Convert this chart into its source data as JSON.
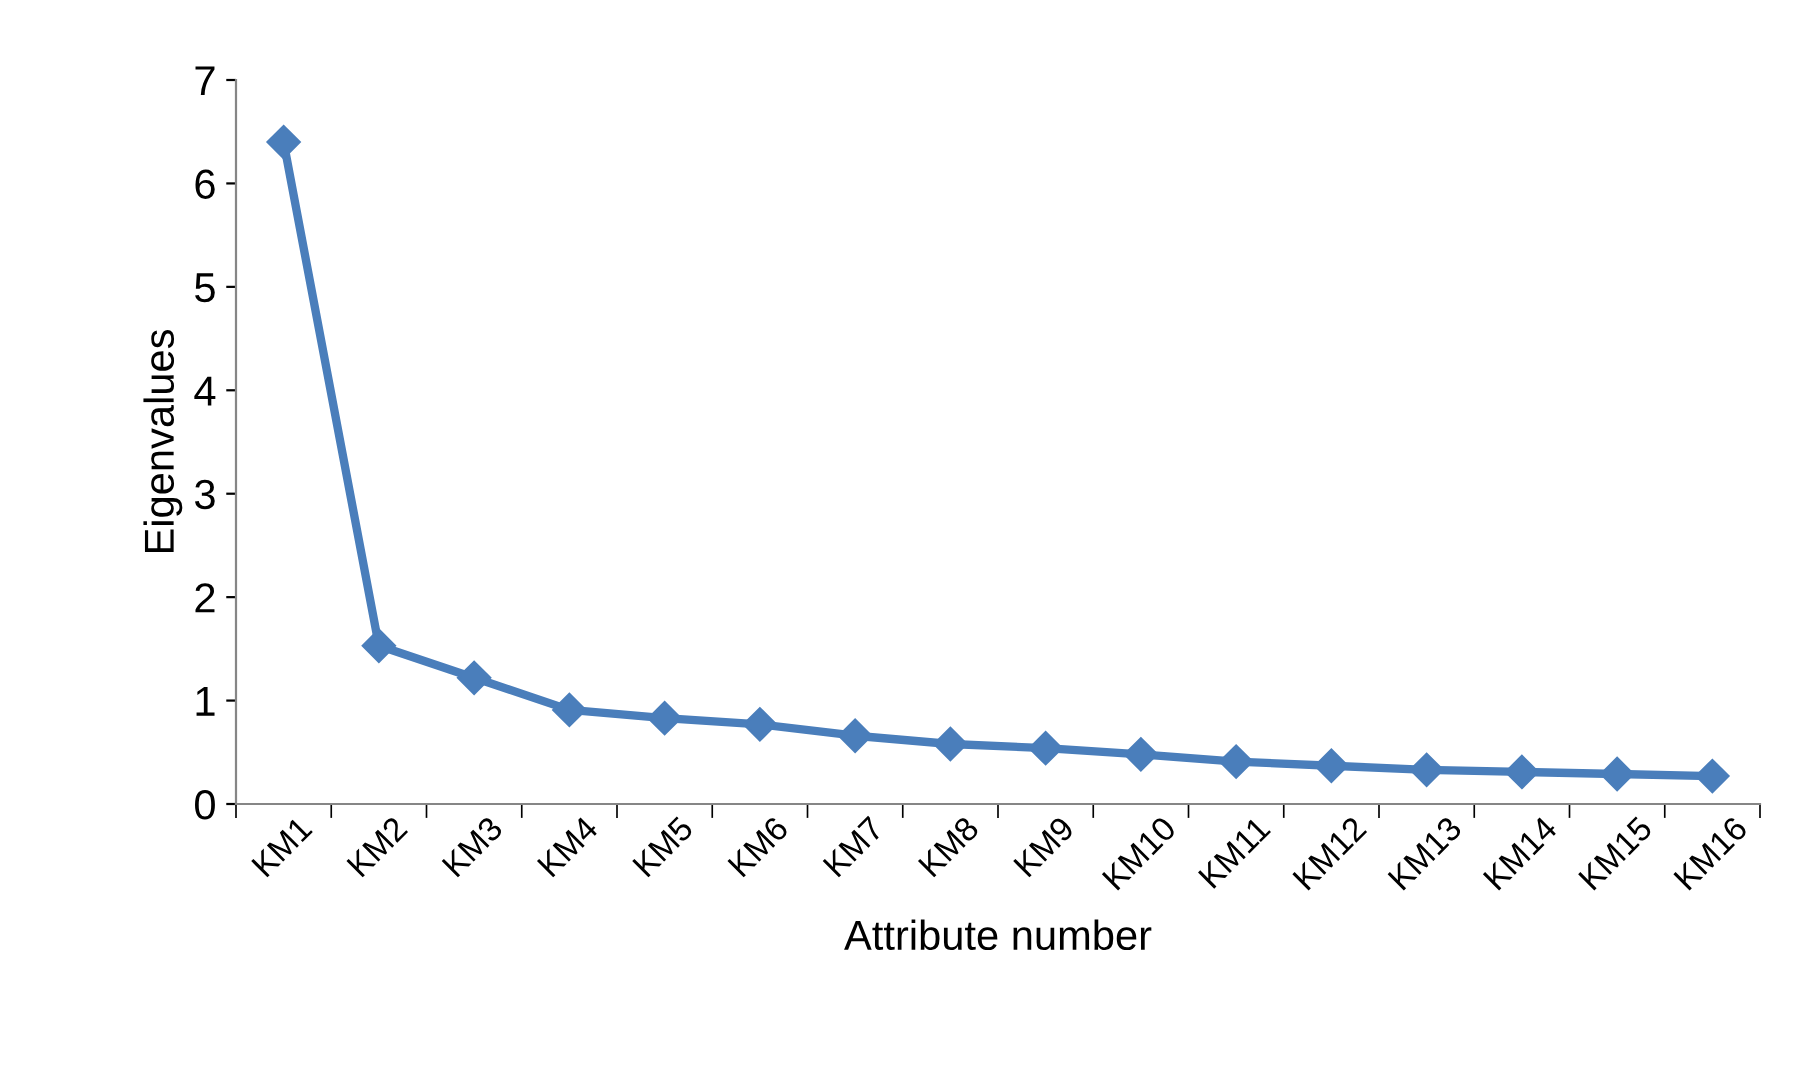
{
  "chart_data": {
    "type": "line",
    "xlabel": "Attribute number",
    "ylabel": "Eigenvalues",
    "categories": [
      "KM1",
      "KM2",
      "KM3",
      "KM4",
      "KM5",
      "KM6",
      "KM7",
      "KM8",
      "KM9",
      "KM10",
      "KM11",
      "KM12",
      "KM13",
      "KM14",
      "KM15",
      "KM16"
    ],
    "series": [
      {
        "color": "#4a7ebb",
        "values": [
          6.4,
          1.53,
          1.22,
          0.91,
          0.83,
          0.77,
          0.66,
          0.58,
          0.54,
          0.48,
          0.41,
          0.37,
          0.33,
          0.31,
          0.29,
          0.27
        ]
      }
    ],
    "ylim": [
      0,
      7
    ],
    "yticks": [
      0,
      1,
      2,
      3,
      4,
      5,
      6,
      7
    ],
    "grid": false,
    "legend": false,
    "marker": "diamond",
    "line_style": "solid"
  }
}
